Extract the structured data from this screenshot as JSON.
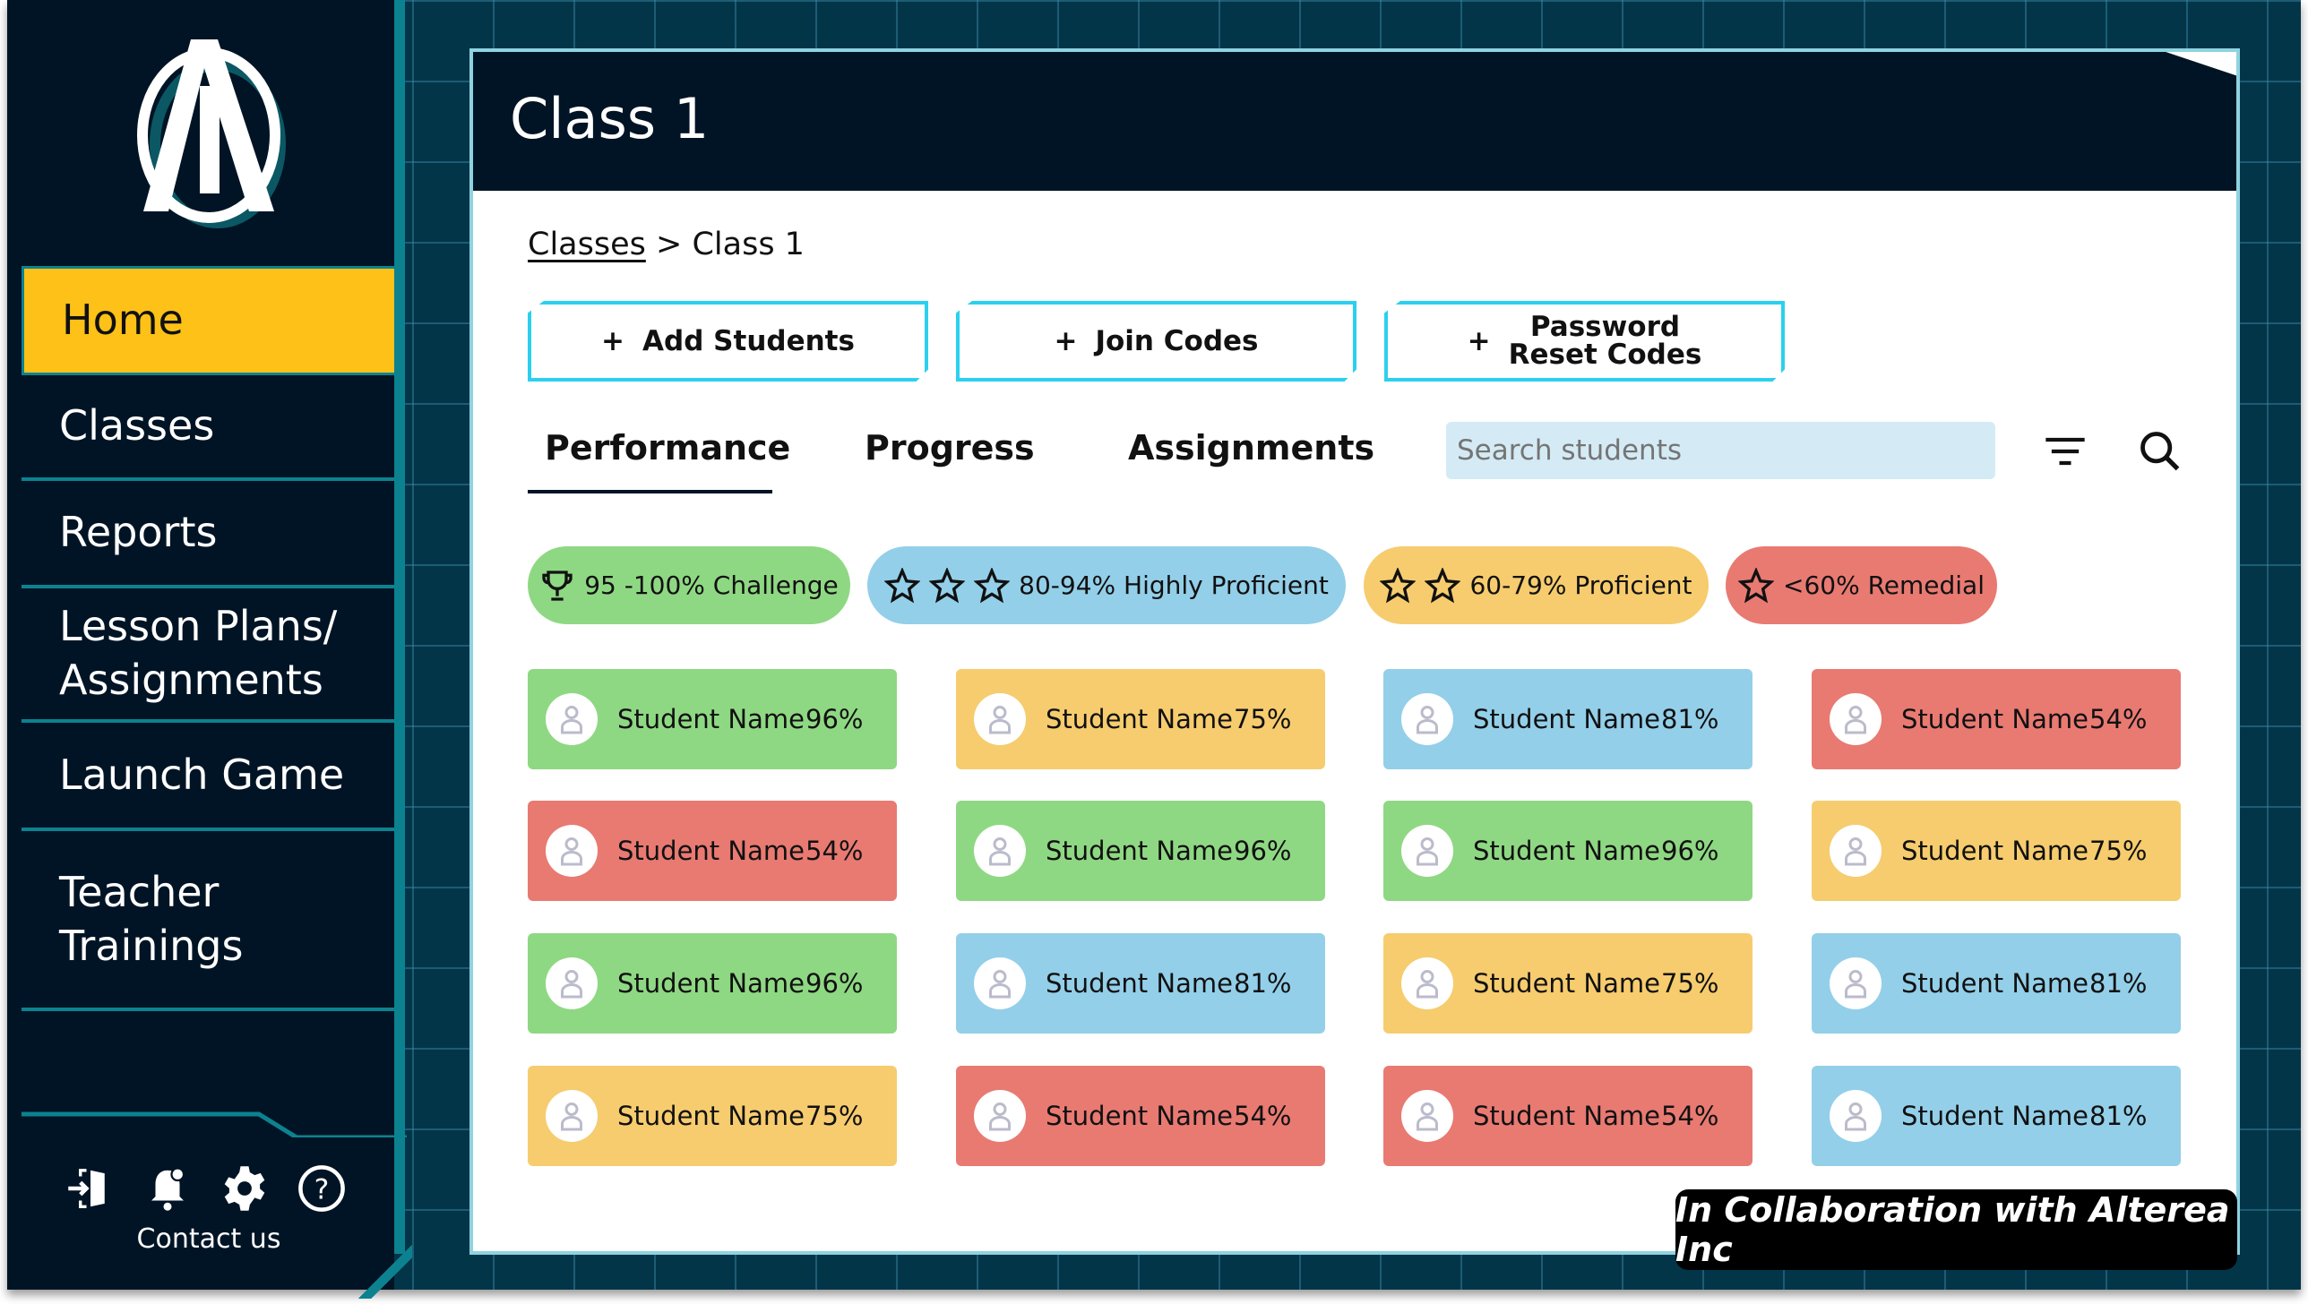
{
  "sidebar": {
    "items": [
      {
        "label": "Home",
        "active": true
      },
      {
        "label": "Classes"
      },
      {
        "label": "Reports"
      },
      {
        "label": "Lesson Plans/ Assignments"
      },
      {
        "label": "Launch Game"
      },
      {
        "label": "Teacher Trainings"
      }
    ],
    "footer_icons": [
      "sign-in-door-icon",
      "bell-notification-icon",
      "gear-icon",
      "help-question-icon"
    ],
    "contact_label": "Contact us"
  },
  "header": {
    "title": "Class 1"
  },
  "breadcrumb": {
    "parent": "Classes",
    "separator": ">",
    "current": "Class 1"
  },
  "actions": [
    {
      "label": "Add Students"
    },
    {
      "label": "Join Codes"
    },
    {
      "label_line1": "Password",
      "label_line2": "Reset Codes"
    }
  ],
  "tabs": [
    {
      "label": "Performance",
      "active": true
    },
    {
      "label": "Progress"
    },
    {
      "label": "Assignments"
    }
  ],
  "search": {
    "placeholder": "Search students",
    "value": ""
  },
  "legend": [
    {
      "label": "95 -100% Challenge",
      "icon": "trophy-icon",
      "color": "#8FD883"
    },
    {
      "label": "80-94% Highly Proficient",
      "stars": 3,
      "color": "#93CFE9"
    },
    {
      "label": "60-79% Proficient",
      "stars": 2,
      "color": "#F6CC6E"
    },
    {
      "label": "<60% Remedial",
      "stars": 1,
      "color": "#E87A72"
    }
  ],
  "students": [
    {
      "name": "Student Name",
      "score": "96%",
      "level": "challenge"
    },
    {
      "name": "Student Name",
      "score": "75%",
      "level": "proficient"
    },
    {
      "name": "Student Name",
      "score": "81%",
      "level": "highly"
    },
    {
      "name": "Student Name",
      "score": "54%",
      "level": "remedial"
    },
    {
      "name": "Student Name",
      "score": "54%",
      "level": "remedial"
    },
    {
      "name": "Student Name",
      "score": "96%",
      "level": "challenge"
    },
    {
      "name": "Student Name",
      "score": "96%",
      "level": "challenge"
    },
    {
      "name": "Student Name",
      "score": "75%",
      "level": "proficient"
    },
    {
      "name": "Student Name",
      "score": "96%",
      "level": "challenge"
    },
    {
      "name": "Student Name",
      "score": "81%",
      "level": "highly"
    },
    {
      "name": "Student Name",
      "score": "75%",
      "level": "proficient"
    },
    {
      "name": "Student Name",
      "score": "81%",
      "level": "highly"
    },
    {
      "name": "Student Name",
      "score": "75%",
      "level": "proficient"
    },
    {
      "name": "Student Name",
      "score": "54%",
      "level": "remedial"
    },
    {
      "name": "Student Name",
      "score": "54%",
      "level": "remedial"
    },
    {
      "name": "Student Name",
      "score": "81%",
      "level": "highly"
    }
  ],
  "level_colors": {
    "challenge": "#8FD883",
    "highly": "#93CFE9",
    "proficient": "#F6CC6E",
    "remedial": "#E87A72"
  },
  "collab": "In Collaboration with Alterea Inc"
}
